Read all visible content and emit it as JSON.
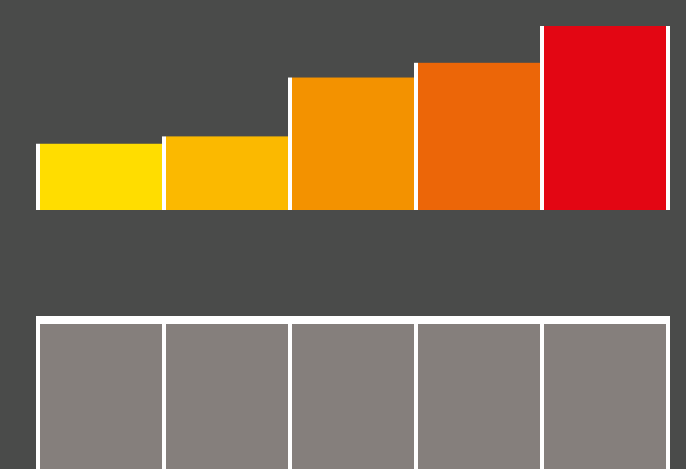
{
  "chart_data": {
    "type": "bar",
    "title": "",
    "xlabel": "",
    "ylabel": "",
    "ylim": [
      0,
      100
    ],
    "grid": false,
    "legend": "none",
    "values": [
      36,
      40,
      72,
      80,
      100
    ],
    "colors": [
      "#ffdd00",
      "#fbb900",
      "#f39200",
      "#ec6608",
      "#e30613"
    ],
    "lower_panel": {
      "cell_count": 5,
      "cell_color": "#857f7c",
      "frame_color": "#ffffff"
    }
  },
  "colors": {
    "background": "#4a4b4a",
    "divider": "#ffffff"
  }
}
